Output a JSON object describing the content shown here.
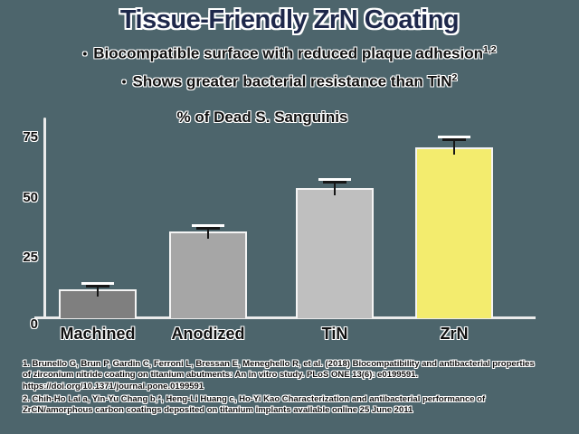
{
  "slide": {
    "title": "Tissue-Friendly ZrN Coating",
    "bullets": [
      {
        "bullet": "•",
        "text": "Biocompatible surface with reduced plaque adhesion",
        "sup": "1,2"
      },
      {
        "bullet": "•",
        "text": "Shows greater bacterial resistance than TiN",
        "sup": "2"
      }
    ],
    "references": [
      "1. Brunello G, Brun P, Gardin C, Ferroni L, Bressan E, Meneghello R, et al. (2018) Biocompatibility and antibacterial properties of zirconium nitride coating on titanium abutments: An in vitro study. PLoS ONE 13(6): e0199591. https://doi.org/10.1371/journal.pone.0199591",
      "2. Chih-Ho Lai a, Yin-Yu Chang b,*, Heng-Li Huang c, Ho-Yi Kao Characterization and antibacterial performance of ZrCN/amorphous carbon coatings deposited on titanium implants available online 25 June 2011"
    ]
  },
  "colors": {
    "background": "#4d656c",
    "title": "#1e284b",
    "text": "#101010",
    "axis": "#ebebeb",
    "halo": "#ffffff"
  },
  "chart_data": {
    "type": "bar",
    "title": "% of Dead S. Sanguinis",
    "categories": [
      "Machined",
      "Anodized",
      "TiN",
      "ZrN"
    ],
    "values": [
      12,
      36,
      54,
      71
    ],
    "errors": [
      2,
      2,
      3,
      3.5
    ],
    "bar_colors": [
      "#7f7f7f",
      "#a6a6a6",
      "#bfbfbf",
      "#f3ec6e"
    ],
    "xlabel": "",
    "ylabel": "",
    "yticks": [
      0,
      25,
      50,
      75
    ],
    "ylim": [
      0,
      80
    ],
    "grid": false,
    "legend": "none"
  }
}
